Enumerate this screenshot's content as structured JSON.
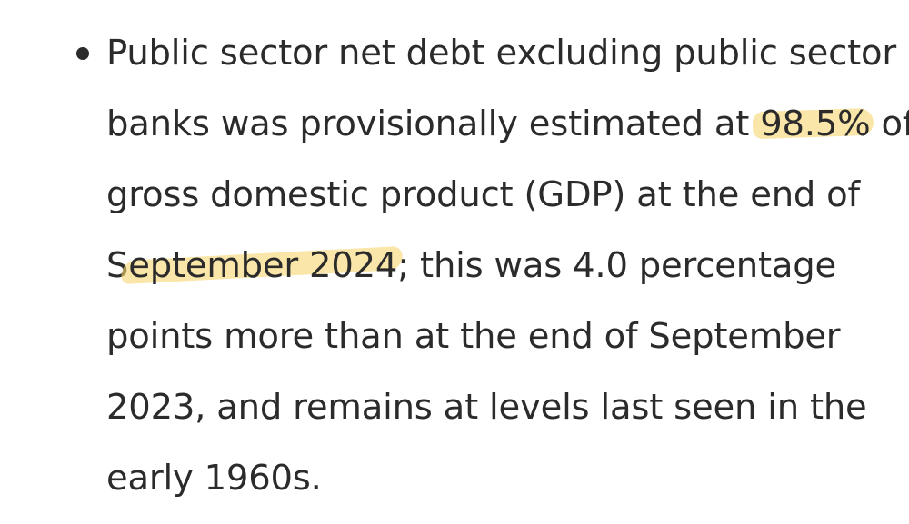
{
  "bullet": {
    "line1": "Public sector net debt excluding public sector",
    "line2_before": "banks was provisionally estimated at ",
    "line2_highlight": "98.5%",
    "line2_after": " of",
    "line3": "gross domestic product (GDP) at the end of",
    "line4_lead": "S",
    "line4_highlight": "eptember 2024",
    "line4_after": "; this was 4.0 percentage",
    "line5": "points more than at the end of September",
    "line6": "2023, and remains at levels last seen in the",
    "line7": "early 1960s."
  },
  "colors": {
    "text": "#2b2b2b",
    "highlight": "#f7d66f"
  }
}
